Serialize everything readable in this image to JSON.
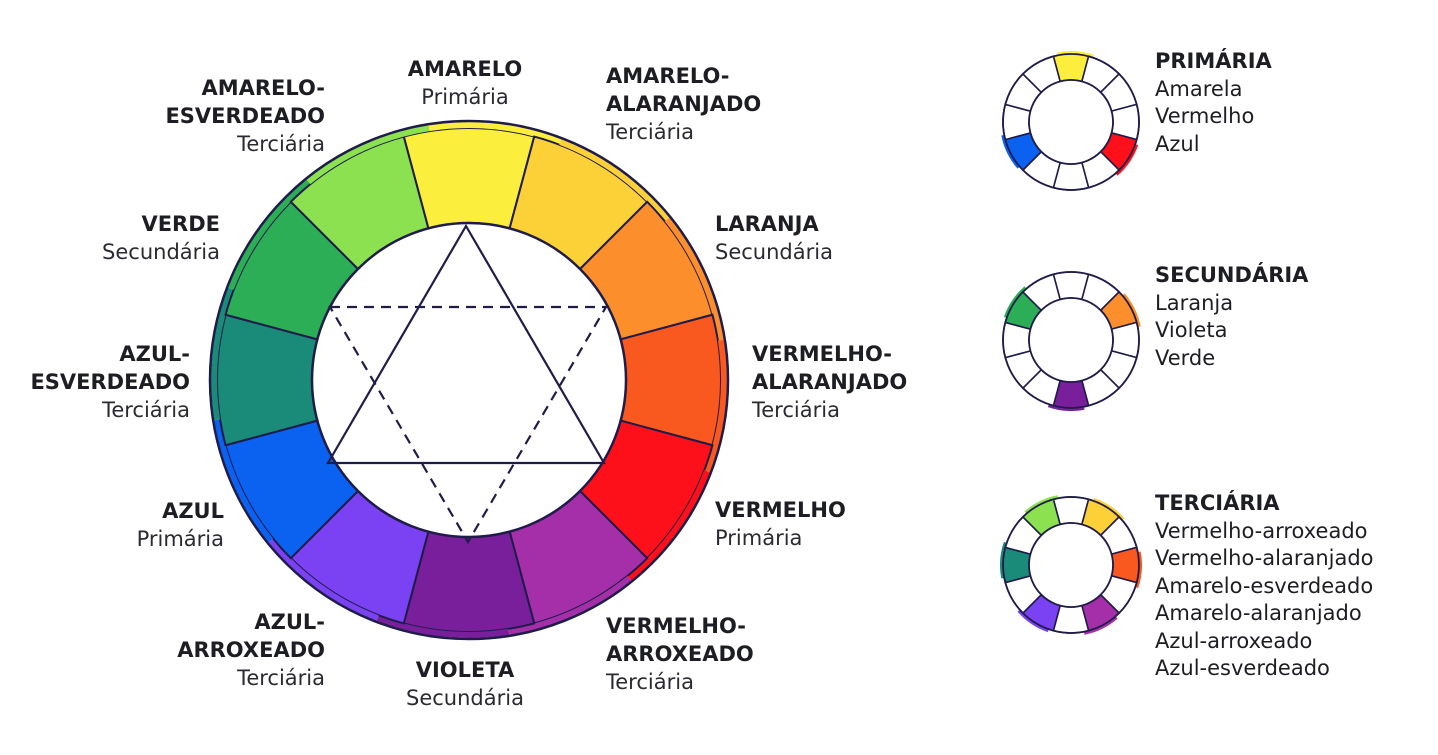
{
  "colors": {
    "amarelo": "#fcee3c",
    "amarelo_alaranjado": "#fcd137",
    "laranja": "#fc8e2c",
    "vermelho_alaranjado": "#f9581f",
    "vermelho": "#fd1019",
    "vermelho_arroxeado": "#a42fa9",
    "violeta": "#7a1f9c",
    "azul_arroxeado": "#7a42f2",
    "azul": "#0c62f0",
    "azul_esverdeado": "#1a8b78",
    "verde": "#2bae55",
    "amarelo_esverdeado": "#8be14f",
    "outline": "#1f1c4a"
  },
  "wheel": [
    {
      "name": "AMARELO",
      "type": "Primária",
      "color": "#fcee3c"
    },
    {
      "name": "AMARELO-\nALARANJADO",
      "type": "Terciária",
      "color": "#fcd137"
    },
    {
      "name": "LARANJA",
      "type": "Secundária",
      "color": "#fc8e2c"
    },
    {
      "name": "VERMELHO-\nALARANJADO",
      "type": "Terciária",
      "color": "#f9581f"
    },
    {
      "name": "VERMELHO",
      "type": "Primária",
      "color": "#fd1019"
    },
    {
      "name": "VERMELHO-\nARROXEADO",
      "type": "Terciária",
      "color": "#a42fa9"
    },
    {
      "name": "VIOLETA",
      "type": "Secundária",
      "color": "#7a1f9c"
    },
    {
      "name": "AZUL-\nARROXEADO",
      "type": "Terciária",
      "color": "#7a42f2"
    },
    {
      "name": "AZUL",
      "type": "Primária",
      "color": "#0c62f0"
    },
    {
      "name": "AZUL-\nESVERDEADO",
      "type": "Terciária",
      "color": "#1a8b78"
    },
    {
      "name": "VERDE",
      "type": "Secundária",
      "color": "#2bae55"
    },
    {
      "name": "AMARELO-\nESVERDEADO",
      "type": "Terciária",
      "color": "#8be14f"
    }
  ],
  "legends": [
    {
      "title": "PRIMÁRIA",
      "items": [
        "Amarela",
        "Vermelho",
        "Azul"
      ],
      "highlight": [
        0,
        4,
        8
      ]
    },
    {
      "title": "SECUNDÁRIA",
      "items": [
        "Laranja",
        "Violeta",
        "Verde"
      ],
      "highlight": [
        2,
        6,
        10
      ]
    },
    {
      "title": "TERCIÁRIA",
      "items": [
        "Vermelho-arroxeado",
        "Vermelho-alaranjado",
        "Amarelo-esverdeado",
        "Amarelo-alaranjado",
        "Azul-arroxeado",
        "Azul-esverdeado"
      ],
      "highlight": [
        1,
        3,
        5,
        7,
        9,
        11
      ]
    }
  ]
}
